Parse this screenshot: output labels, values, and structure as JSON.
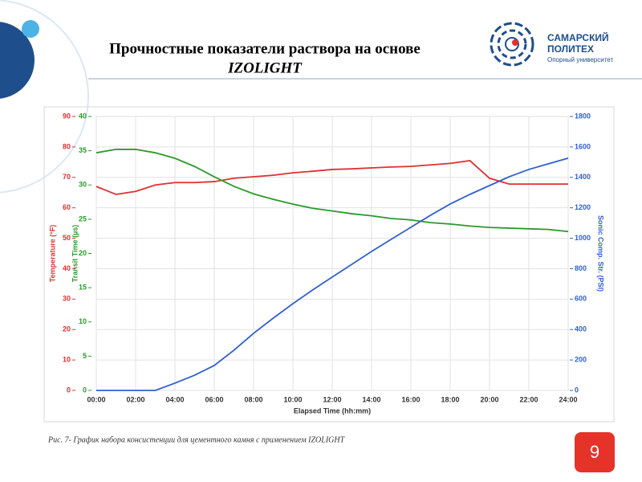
{
  "slide": {
    "title": [
      "Прочностные показатели раствора на основе",
      "IZOLIGHT"
    ],
    "logo": [
      "САМАРСКИЙ",
      "ПОЛИТЕХ",
      "Опорный университет"
    ],
    "caption": "Рис. 7- График набора консистенции для цементного камня  с применением  IZOLIGHT",
    "page_number": 9
  },
  "chart_data": {
    "type": "line",
    "x_label": "Elapsed Time (hh:mm)",
    "y_label": "Temperature (°F)",
    "y2_label": "Transit Time (µs)",
    "y3_label": "Sonic Comp. Str. (PSI)",
    "x": [
      0,
      1,
      2,
      3,
      4,
      5,
      6,
      7,
      8,
      9,
      10,
      11,
      12,
      13,
      14,
      15,
      16,
      17,
      18,
      19,
      20,
      21,
      22,
      23,
      24
    ],
    "xlim": [
      0,
      24
    ],
    "xticks": [
      {
        "value": 0,
        "label": "00:00"
      },
      {
        "value": 2,
        "label": "02:00"
      },
      {
        "value": 4,
        "label": "04:00"
      },
      {
        "value": 6,
        "label": "06:00"
      },
      {
        "value": 8,
        "label": "08:00"
      },
      {
        "value": 10,
        "label": "10:00"
      },
      {
        "value": 12,
        "label": "12:00"
      },
      {
        "value": 14,
        "label": "14:00"
      },
      {
        "value": 16,
        "label": "16:00"
      },
      {
        "value": 18,
        "label": "18:00"
      },
      {
        "value": 20,
        "label": "20:00"
      },
      {
        "value": 22,
        "label": "22:00"
      },
      {
        "value": 24,
        "label": "24:00"
      }
    ],
    "ylim": [
      0,
      90
    ],
    "yticks": [
      0,
      10,
      20,
      30,
      40,
      50,
      60,
      70,
      80,
      90
    ],
    "y2lim": [
      0,
      40
    ],
    "y2ticks": [
      0,
      5,
      10,
      15,
      20,
      25,
      30,
      35,
      40
    ],
    "y3lim": [
      0,
      1800
    ],
    "y3ticks": [
      0,
      200,
      400,
      600,
      800,
      1000,
      1200,
      1400,
      1600,
      1800
    ],
    "grid": true,
    "series": [
      {
        "name": "Temperature",
        "color": "#e03030",
        "axis": "y",
        "values": [
          67,
          64.4,
          65.4,
          67.5,
          68.3,
          68.3,
          68.6,
          69.7,
          70.2,
          70.7,
          71.5,
          72,
          72.6,
          72.8,
          73.1,
          73.4,
          73.6,
          74.1,
          74.6,
          75.5,
          69.7,
          67.8,
          67.8,
          67.8,
          67.8
        ]
      },
      {
        "name": "Transit Time",
        "color": "#2a9a2a",
        "axis": "y2",
        "values": [
          34.7,
          35.2,
          35.2,
          34.7,
          33.9,
          32.7,
          31.2,
          29.8,
          28.7,
          27.9,
          27.2,
          26.6,
          26.2,
          25.8,
          25.5,
          25.1,
          24.9,
          24.5,
          24.3,
          24,
          23.8,
          23.7,
          23.6,
          23.5,
          23.2
        ]
      },
      {
        "name": "Sonic Comp. Str.",
        "color": "#3060d0",
        "axis": "y3",
        "values": [
          0,
          0,
          0,
          0,
          48,
          100,
          164,
          264,
          375,
          475,
          570,
          660,
          745,
          829,
          913,
          993,
          1072,
          1151,
          1225,
          1288,
          1346,
          1404,
          1452,
          1489,
          1526
        ]
      }
    ]
  }
}
